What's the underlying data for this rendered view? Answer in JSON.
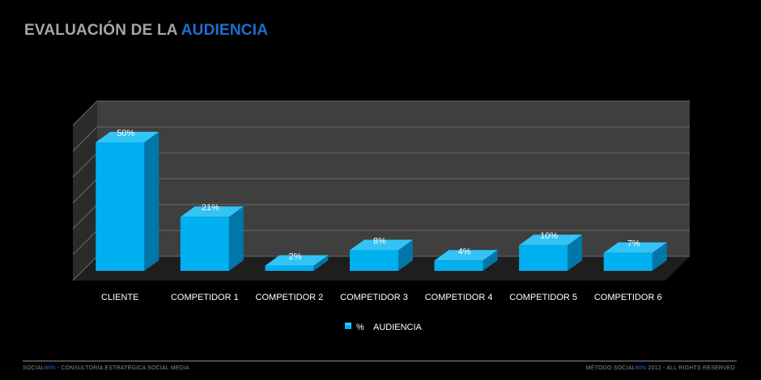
{
  "header": {
    "title_main": "EVALUACIÓN DE LA",
    "title_highlight": "AUDIENCIA"
  },
  "colors": {
    "accent": "#1f6fd1",
    "bar_front": "#00b0f0",
    "bar_side": "#0077a8",
    "bar_top": "#33c4f5",
    "wall": "#3f3f3f",
    "floor": "#1e1e1e"
  },
  "chart_data": {
    "type": "bar",
    "categories": [
      "CLIENTE",
      "COMPETIDOR 1",
      "COMPETIDOR 2",
      "COMPETIDOR 3",
      "COMPETIDOR 4",
      "COMPETIDOR 5",
      "COMPETIDOR 6"
    ],
    "series": [
      {
        "name": "% AUDIENCIA",
        "values": [
          50,
          21,
          2,
          8,
          4,
          10,
          7
        ]
      }
    ],
    "data_labels": [
      "50%",
      "21%",
      "2%",
      "8%",
      "4%",
      "10%",
      "7%"
    ],
    "ylim": [
      0,
      60
    ],
    "grid": true,
    "three_d": true,
    "legend": {
      "position": "bottom",
      "label_a": "%",
      "label_b": "AUDIENCIA"
    }
  },
  "footer": {
    "left_a": "SOCIAL",
    "left_b": "WIN",
    "left_c": " - CONSULTORÍA ESTRATÉGICA SOCIAL MEDIA",
    "right_a": "MÉTODO ",
    "right_b": "SOCIAL",
    "right_c": "WIN",
    "right_d": " 2012 - ALL RIGHTS RESERVED"
  }
}
